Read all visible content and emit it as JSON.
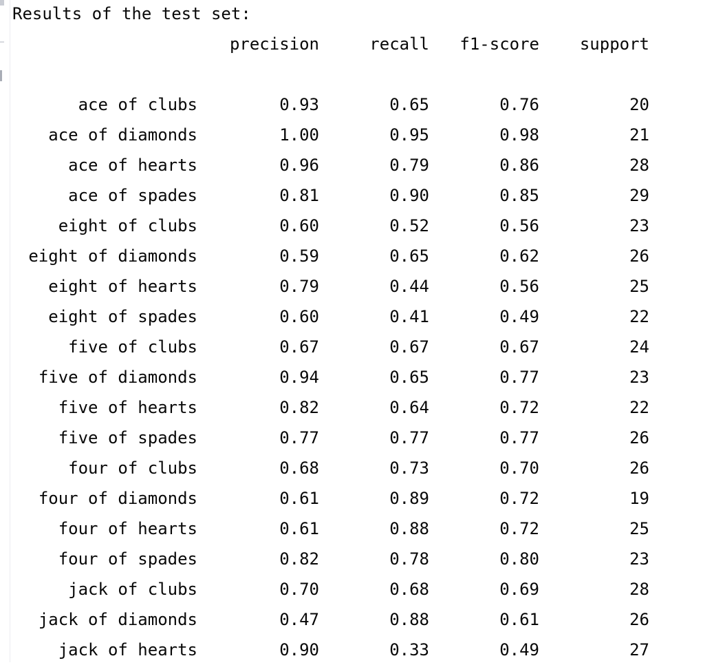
{
  "console": {
    "title": "Results of the test set:",
    "columns": {
      "precision": "precision",
      "recall": "recall",
      "f1": "f1-score",
      "support": "support"
    },
    "rows": [
      {
        "label": "ace of clubs",
        "precision": "0.93",
        "recall": "0.65",
        "f1": "0.76",
        "support": "20"
      },
      {
        "label": "ace of diamonds",
        "precision": "1.00",
        "recall": "0.95",
        "f1": "0.98",
        "support": "21"
      },
      {
        "label": "ace of hearts",
        "precision": "0.96",
        "recall": "0.79",
        "f1": "0.86",
        "support": "28"
      },
      {
        "label": "ace of spades",
        "precision": "0.81",
        "recall": "0.90",
        "f1": "0.85",
        "support": "29"
      },
      {
        "label": "eight of clubs",
        "precision": "0.60",
        "recall": "0.52",
        "f1": "0.56",
        "support": "23"
      },
      {
        "label": "eight of diamonds",
        "precision": "0.59",
        "recall": "0.65",
        "f1": "0.62",
        "support": "26"
      },
      {
        "label": "eight of hearts",
        "precision": "0.79",
        "recall": "0.44",
        "f1": "0.56",
        "support": "25"
      },
      {
        "label": "eight of spades",
        "precision": "0.60",
        "recall": "0.41",
        "f1": "0.49",
        "support": "22"
      },
      {
        "label": "five of clubs",
        "precision": "0.67",
        "recall": "0.67",
        "f1": "0.67",
        "support": "24"
      },
      {
        "label": "five of diamonds",
        "precision": "0.94",
        "recall": "0.65",
        "f1": "0.77",
        "support": "23"
      },
      {
        "label": "five of hearts",
        "precision": "0.82",
        "recall": "0.64",
        "f1": "0.72",
        "support": "22"
      },
      {
        "label": "five of spades",
        "precision": "0.77",
        "recall": "0.77",
        "f1": "0.77",
        "support": "26"
      },
      {
        "label": "four of clubs",
        "precision": "0.68",
        "recall": "0.73",
        "f1": "0.70",
        "support": "26"
      },
      {
        "label": "four of diamonds",
        "precision": "0.61",
        "recall": "0.89",
        "f1": "0.72",
        "support": "19"
      },
      {
        "label": "four of hearts",
        "precision": "0.61",
        "recall": "0.88",
        "f1": "0.72",
        "support": "25"
      },
      {
        "label": "four of spades",
        "precision": "0.82",
        "recall": "0.78",
        "f1": "0.80",
        "support": "23"
      },
      {
        "label": "jack of clubs",
        "precision": "0.70",
        "recall": "0.68",
        "f1": "0.69",
        "support": "28"
      },
      {
        "label": "jack of diamonds",
        "precision": "0.47",
        "recall": "0.88",
        "f1": "0.61",
        "support": "26"
      },
      {
        "label": "jack of hearts",
        "precision": "0.90",
        "recall": "0.33",
        "f1": "0.49",
        "support": "27"
      }
    ]
  }
}
